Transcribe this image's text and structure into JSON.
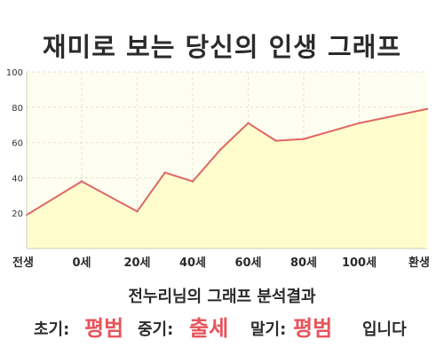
{
  "title": "재미로 보는 당신의 인생 그래프",
  "chart_data": {
    "type": "area",
    "title": "재미로 보는 당신의 인생 그래프",
    "x_labels": [
      "전생",
      "0세",
      "20세",
      "40세",
      "60세",
      "80세",
      "100세",
      "환생"
    ],
    "y_ticks": [
      20,
      40,
      60,
      80,
      100
    ],
    "ylim": [
      0,
      100
    ],
    "grid": true,
    "series": [
      {
        "x": [
          "전생",
          "0세",
          "20세",
          "30세",
          "40세",
          "50세",
          "60세",
          "70세",
          "80세",
          "100세",
          "환생"
        ],
        "values": [
          19,
          38,
          21,
          43,
          38,
          56,
          71,
          61,
          62,
          71,
          79
        ]
      }
    ],
    "colors": {
      "line": "#e06666",
      "fill": "#fffdc9",
      "plot_bg": "#fefef0",
      "grid": "#e4e4d4"
    }
  },
  "result": {
    "heading": "전누리님의 그래프 분석결과",
    "early_label": "초기:",
    "early_value": "평범",
    "mid_label": "중기:",
    "mid_value": "출세",
    "late_label": "말기:",
    "late_value": "평범",
    "suffix": "입니다"
  }
}
